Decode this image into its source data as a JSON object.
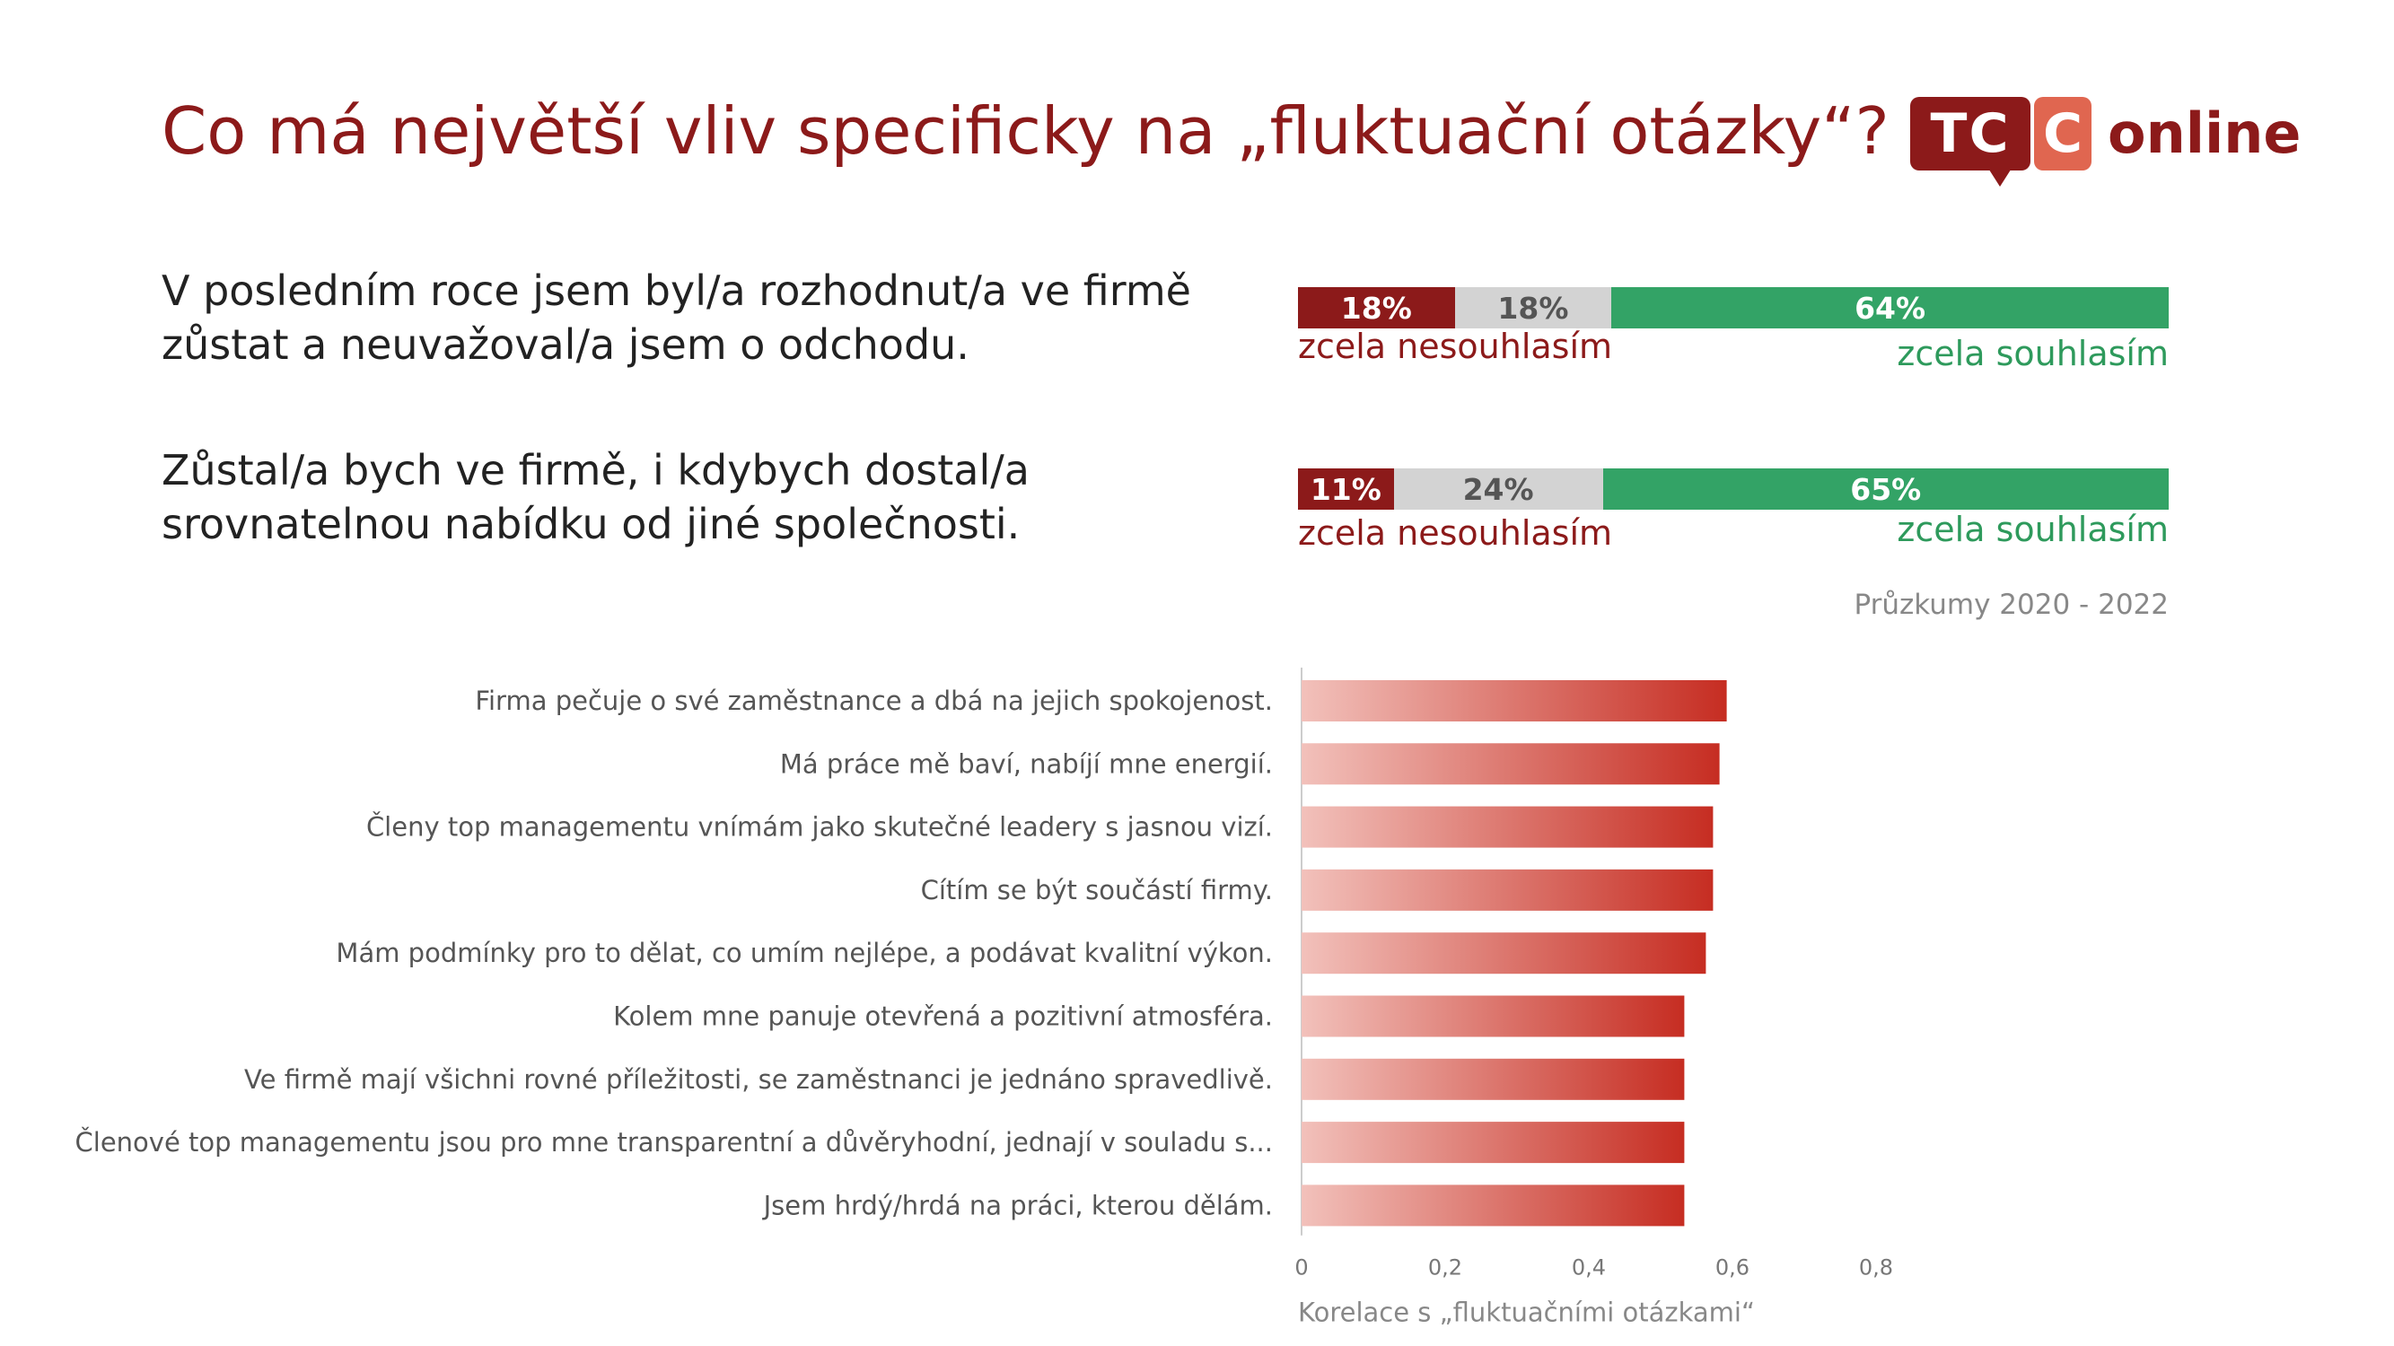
{
  "title": "Co má největší vliv specificky na „fluktuační otázky“?",
  "logo": {
    "tc": "TC",
    "c": "C",
    "word": "online"
  },
  "statements": [
    {
      "text": "V posledním roce jsem byl/a rozhodnut/a ve firmě zůstat a neuvažoval/a jsem o odchodu.",
      "disagree": 18,
      "neutral": 18,
      "agree": 64,
      "disagree_label": "18%",
      "neutral_label": "18%",
      "agree_label": "64%",
      "left_label": "zcela nesouhlasím",
      "right_label": "zcela souhlasím"
    },
    {
      "text": "Zůstal/a bych ve firmě, i kdybych dostal/a srovnatelnou nabídku od jiné společnosti.",
      "disagree": 11,
      "neutral": 24,
      "agree": 65,
      "disagree_label": "11%",
      "neutral_label": "24%",
      "agree_label": "65%",
      "left_label": "zcela nesouhlasím",
      "right_label": "zcela souhlasím"
    }
  ],
  "source": "Průzkumy 2020 - 2022",
  "colors": {
    "title": "#8c1a1a",
    "disagree": "#8c1a1a",
    "neutral": "#d3d3d3",
    "agree": "#33a366",
    "bar_light": "#f2c1bb",
    "bar_dark": "#c62d22"
  },
  "chart_data": {
    "type": "bar",
    "orientation": "horizontal",
    "categories": [
      "Firma pečuje o své zaměstnance a dbá na jejich spokojenost.",
      "Má práce mě baví, nabíjí mne energií.",
      "Členy top managementu vnímám jako skutečné leadery s jasnou vizí.",
      "Cítím se být součástí firmy.",
      "Mám podmínky pro to dělat, co umím nejlépe, a podávat kvalitní výkon.",
      "Kolem mne panuje otevřená a pozitivní atmosféra.",
      "Ve firmě mají všichni rovné příležitosti, se zaměstnanci je jednáno spravedlivě.",
      "Členové top managementu jsou pro mne transparentní a důvěryhodní, jednají v souladu s...",
      "Jsem hrdý/hrdá na práci, kterou dělám."
    ],
    "values": [
      0.592,
      0.582,
      0.573,
      0.573,
      0.563,
      0.533,
      0.533,
      0.533,
      0.533
    ],
    "xlim": [
      0,
      0.8
    ],
    "xticks": [
      0,
      0.2,
      0.4,
      0.6,
      0.8
    ],
    "xtick_labels": [
      "0",
      "0,2",
      "0,4",
      "0,6",
      "0,8"
    ],
    "xlabel": "Korelace s „fluktuačními otázkami“",
    "ylabel": "",
    "grid": false
  }
}
